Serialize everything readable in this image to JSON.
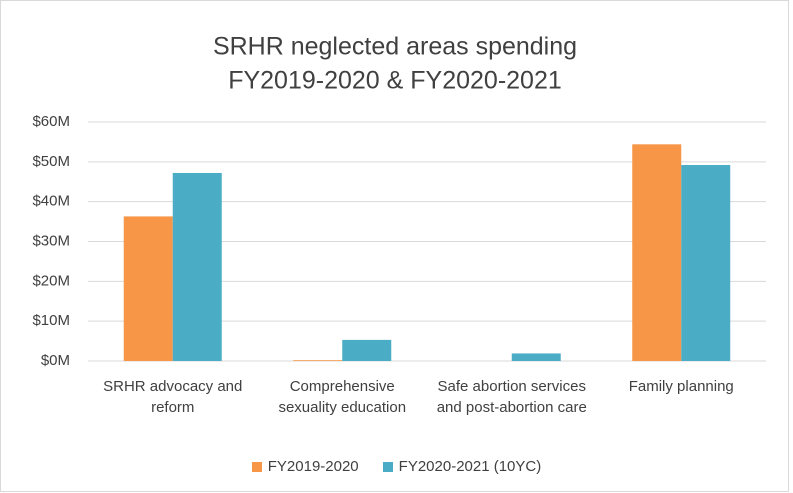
{
  "chart_data": {
    "type": "bar",
    "title": [
      "SRHR neglected areas spending",
      "FY2019-2020 & FY2020-2021"
    ],
    "categories": [
      "SRHR advocacy and reform",
      "Comprehensive sexuality education",
      "Safe abortion services and post-abortion care",
      "Family planning"
    ],
    "series": [
      {
        "name": "FY2019-2020",
        "color": "#f79646",
        "values": [
          36.3,
          0.2,
          0,
          54.4
        ]
      },
      {
        "name": "FY2020-2021 (10YC)",
        "color": "#4bacc6",
        "values": [
          47.2,
          5.3,
          1.9,
          49.2
        ]
      }
    ],
    "ylim": [
      0,
      60
    ],
    "yticks": [
      {
        "value": 0,
        "label": "$0M"
      },
      {
        "value": 10,
        "label": "$10M"
      },
      {
        "value": 20,
        "label": "$20M"
      },
      {
        "value": 30,
        "label": "$30M"
      },
      {
        "value": 40,
        "label": "$40M"
      },
      {
        "value": 50,
        "label": "$50M"
      },
      {
        "value": 60,
        "label": "$60M"
      }
    ],
    "grid": true,
    "legend": "bottom"
  }
}
